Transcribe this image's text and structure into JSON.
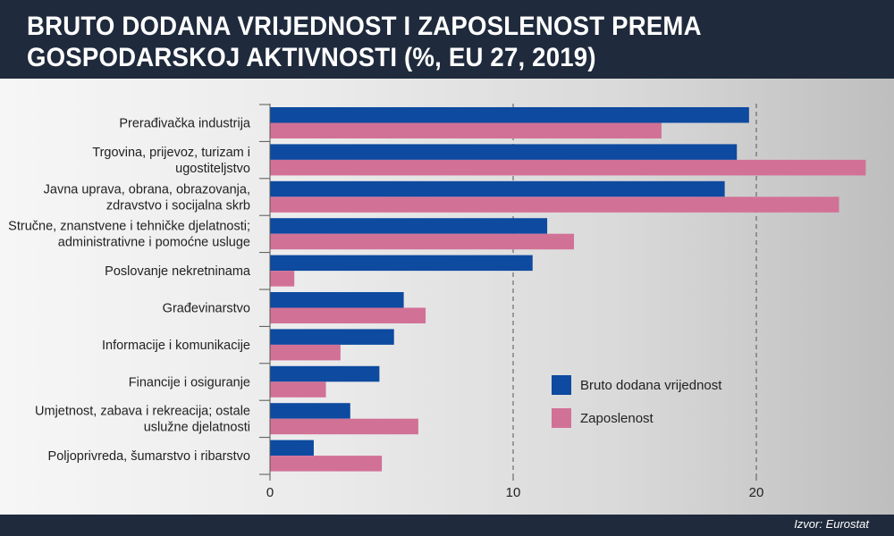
{
  "header": {
    "title_line1": "BRUTO DODANA VRIJEDNOST I ZAPOSLENOST PREMA",
    "title_line2": "GOSPODARSKOJ AKTIVNOSTI (%, EU 27, 2019)"
  },
  "footer": {
    "source": "Izvor: Eurostat"
  },
  "colors": {
    "series1": "#0d4aa0",
    "series2": "#d27196",
    "axis": "#555555",
    "grid": "#555555"
  },
  "chart_data": {
    "type": "bar",
    "orientation": "horizontal",
    "title": "BRUTO DODANA VRIJEDNOST I ZAPOSLENOST PREMA GOSPODARSKOJ AKTIVNOSTI (%, EU 27, 2019)",
    "xlabel": "",
    "ylabel": "",
    "xlim": [
      0,
      24.5
    ],
    "xticks": [
      0,
      10,
      20
    ],
    "grid": "vertical dashed at 10 and 20",
    "legend_position": "right-bottom",
    "categories": [
      [
        "Prerađivačka industrija"
      ],
      [
        "Trgovina, prijevoz, turizam i",
        "ugostiteljstvo"
      ],
      [
        "Javna uprava, obrana, obrazovanja,",
        "zdravstvo i socijalna skrb"
      ],
      [
        "Stručne, znanstvene i tehničke djelatnosti;",
        "administrativne i pomoćne usluge"
      ],
      [
        "Poslovanje nekretninama"
      ],
      [
        "Građevinarstvo"
      ],
      [
        "Informacije i komunikacije"
      ],
      [
        "Financije i osiguranje"
      ],
      [
        "Umjetnost, zabava i rekreacija; ostale",
        "uslužne djelatnosti"
      ],
      [
        "Poljoprivreda, šumarstvo i ribarstvo"
      ]
    ],
    "series": [
      {
        "name": "Bruto dodana vrijednost",
        "values": [
          19.7,
          19.2,
          18.7,
          11.4,
          10.8,
          5.5,
          5.1,
          4.5,
          3.3,
          1.8
        ]
      },
      {
        "name": "Zaposlenost",
        "values": [
          16.1,
          24.5,
          23.4,
          12.5,
          1.0,
          6.4,
          2.9,
          2.3,
          6.1,
          4.6
        ]
      }
    ]
  }
}
